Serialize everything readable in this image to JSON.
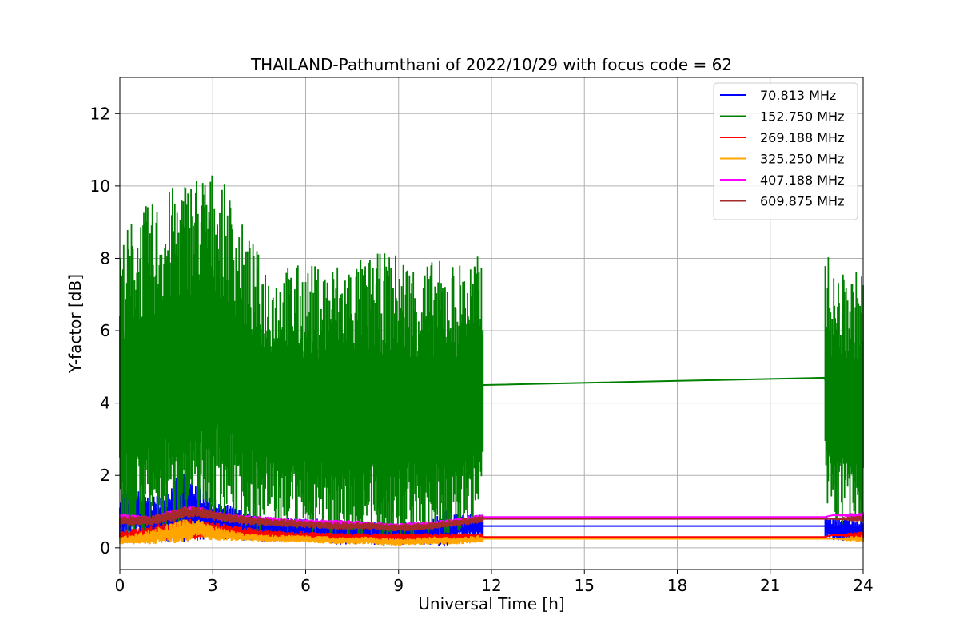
{
  "chart_data": {
    "type": "line",
    "title": "THAILAND-Pathumthani of 2022/10/29 with focus code = 62",
    "xlabel": "Universal Time [h]",
    "ylabel": "Y-factor [dB]",
    "xlim": [
      0,
      24
    ],
    "ylim": [
      -0.6,
      13.0
    ],
    "xticks": [
      0,
      3,
      6,
      9,
      12,
      15,
      18,
      21,
      24
    ],
    "yticks": [
      0,
      2,
      4,
      6,
      8,
      10,
      12
    ],
    "grid": true,
    "legend_position": "top-right",
    "data_gap": [
      11.75,
      22.75
    ],
    "series": [
      {
        "name": " 70.813 MHz",
        "color": "#0000ff",
        "points": [
          [
            0,
            0.9
          ],
          [
            0.5,
            1.0
          ],
          [
            1,
            0.8
          ],
          [
            1.5,
            0.9
          ],
          [
            2,
            1.1
          ],
          [
            2.5,
            1.0
          ],
          [
            3,
            0.8
          ],
          [
            3.5,
            0.7
          ],
          [
            4,
            0.6
          ],
          [
            4.5,
            0.5
          ],
          [
            5,
            0.5
          ],
          [
            5.5,
            0.5
          ],
          [
            6,
            0.5
          ],
          [
            6.5,
            0.5
          ],
          [
            7,
            0.4
          ],
          [
            7.5,
            0.4
          ],
          [
            8,
            0.4
          ],
          [
            8.5,
            0.4
          ],
          [
            9,
            0.4
          ],
          [
            9.5,
            0.4
          ],
          [
            10,
            0.4
          ],
          [
            10.5,
            0.5
          ],
          [
            11,
            0.6
          ],
          [
            11.75,
            0.6
          ],
          [
            22.75,
            0.6
          ],
          [
            23,
            0.5
          ],
          [
            23.5,
            0.5
          ],
          [
            24,
            0.5
          ]
        ],
        "spread": [
          [
            0,
            0.6
          ],
          [
            0.5,
            0.6
          ],
          [
            1,
            0.5
          ],
          [
            1.5,
            0.7
          ],
          [
            2,
            0.9
          ],
          [
            2.5,
            0.8
          ],
          [
            3,
            0.5
          ],
          [
            4,
            0.4
          ],
          [
            5,
            0.3
          ],
          [
            6,
            0.3
          ],
          [
            7,
            0.3
          ],
          [
            8,
            0.3
          ],
          [
            9,
            0.3
          ],
          [
            10,
            0.3
          ],
          [
            10.5,
            0.5
          ],
          [
            11,
            0.3
          ],
          [
            11.75,
            0.3
          ],
          [
            22.75,
            0.3
          ],
          [
            24,
            0.3
          ]
        ]
      },
      {
        "name": "152.750 MHz",
        "color": "#008000",
        "points": [
          [
            0,
            4.3
          ],
          [
            0.5,
            4.6
          ],
          [
            1,
            4.8
          ],
          [
            1.5,
            5.0
          ],
          [
            2,
            5.2
          ],
          [
            2.5,
            5.5
          ],
          [
            3,
            5.5
          ],
          [
            3.5,
            5.2
          ],
          [
            4,
            4.6
          ],
          [
            4.5,
            4.2
          ],
          [
            5,
            4.1
          ],
          [
            5.5,
            4.0
          ],
          [
            6,
            4.0
          ],
          [
            6.5,
            4.0
          ],
          [
            7,
            4.0
          ],
          [
            7.5,
            4.0
          ],
          [
            8,
            4.0
          ],
          [
            8.5,
            4.0
          ],
          [
            9,
            4.0
          ],
          [
            9.5,
            4.0
          ],
          [
            10,
            4.0
          ],
          [
            10.5,
            4.0
          ],
          [
            11,
            4.0
          ],
          [
            11.75,
            4.5
          ],
          [
            22.75,
            4.7
          ],
          [
            23,
            4.0
          ],
          [
            23.5,
            4.0
          ],
          [
            24,
            4.0
          ]
        ],
        "spread": [
          [
            0,
            3.8
          ],
          [
            0.5,
            4.3
          ],
          [
            1,
            4.3
          ],
          [
            1.5,
            4.4
          ],
          [
            2,
            4.6
          ],
          [
            2.5,
            4.5
          ],
          [
            3,
            4.5
          ],
          [
            3.5,
            4.3
          ],
          [
            4,
            3.9
          ],
          [
            4.5,
            3.6
          ],
          [
            5,
            3.4
          ],
          [
            5.5,
            3.5
          ],
          [
            6,
            3.5
          ],
          [
            6.5,
            3.5
          ],
          [
            7,
            3.6
          ],
          [
            7.5,
            3.6
          ],
          [
            8,
            3.7
          ],
          [
            8.5,
            3.8
          ],
          [
            9,
            3.8
          ],
          [
            9.5,
            3.6
          ],
          [
            10,
            3.6
          ],
          [
            10.5,
            3.6
          ],
          [
            11,
            3.6
          ],
          [
            11.75,
            3.3
          ],
          [
            22.75,
            3.5
          ],
          [
            23,
            3.3
          ],
          [
            23.5,
            3.3
          ],
          [
            24,
            3.4
          ]
        ]
      },
      {
        "name": "269.188 MHz",
        "color": "#ff0000",
        "points": [
          [
            0,
            0.35
          ],
          [
            1,
            0.4
          ],
          [
            2,
            0.5
          ],
          [
            3,
            0.5
          ],
          [
            4,
            0.4
          ],
          [
            5,
            0.35
          ],
          [
            6,
            0.35
          ],
          [
            7,
            0.3
          ],
          [
            8,
            0.3
          ],
          [
            9,
            0.3
          ],
          [
            10,
            0.3
          ],
          [
            11,
            0.3
          ],
          [
            11.75,
            0.3
          ],
          [
            22.75,
            0.3
          ],
          [
            23,
            0.35
          ],
          [
            24,
            0.35
          ]
        ],
        "spread": [
          [
            0,
            0.1
          ],
          [
            2,
            0.3
          ],
          [
            3,
            0.2
          ],
          [
            6,
            0.1
          ],
          [
            11.75,
            0.1
          ],
          [
            22.75,
            0.0
          ],
          [
            24,
            0.1
          ]
        ]
      },
      {
        "name": "325.250 MHz",
        "color": "#ffa500",
        "points": [
          [
            0,
            0.2
          ],
          [
            1,
            0.3
          ],
          [
            2,
            0.45
          ],
          [
            2.5,
            0.55
          ],
          [
            3,
            0.4
          ],
          [
            4,
            0.3
          ],
          [
            5,
            0.25
          ],
          [
            6,
            0.25
          ],
          [
            7,
            0.2
          ],
          [
            8,
            0.2
          ],
          [
            9,
            0.15
          ],
          [
            10,
            0.2
          ],
          [
            11,
            0.2
          ],
          [
            11.75,
            0.25
          ],
          [
            22.75,
            0.25
          ],
          [
            23,
            0.25
          ],
          [
            24,
            0.25
          ]
        ],
        "spread": [
          [
            0,
            0.1
          ],
          [
            2,
            0.3
          ],
          [
            2.5,
            0.25
          ],
          [
            4,
            0.1
          ],
          [
            11.75,
            0.1
          ],
          [
            22.75,
            0.0
          ],
          [
            24,
            0.1
          ]
        ]
      },
      {
        "name": "407.188 MHz",
        "color": "#ff00ff",
        "points": [
          [
            0,
            0.85
          ],
          [
            1,
            0.75
          ],
          [
            2,
            1.0
          ],
          [
            2.5,
            1.05
          ],
          [
            3,
            0.9
          ],
          [
            4,
            0.8
          ],
          [
            5,
            0.75
          ],
          [
            6,
            0.7
          ],
          [
            7,
            0.7
          ],
          [
            8,
            0.65
          ],
          [
            9,
            0.6
          ],
          [
            10,
            0.65
          ],
          [
            11,
            0.75
          ],
          [
            11.75,
            0.85
          ],
          [
            22.75,
            0.85
          ],
          [
            23,
            0.9
          ],
          [
            24,
            0.9
          ]
        ],
        "spread": [
          [
            0,
            0.1
          ],
          [
            2,
            0.12
          ],
          [
            6,
            0.08
          ],
          [
            11.75,
            0.08
          ],
          [
            22.75,
            0.0
          ],
          [
            24,
            0.08
          ]
        ]
      },
      {
        "name": "609.875 MHz",
        "color": "#a52a2a",
        "points": [
          [
            0,
            0.75
          ],
          [
            1,
            0.75
          ],
          [
            2,
            0.95
          ],
          [
            2.5,
            1.0
          ],
          [
            3,
            0.9
          ],
          [
            4,
            0.75
          ],
          [
            5,
            0.7
          ],
          [
            6,
            0.65
          ],
          [
            7,
            0.6
          ],
          [
            8,
            0.6
          ],
          [
            9,
            0.55
          ],
          [
            10,
            0.6
          ],
          [
            11,
            0.7
          ],
          [
            11.75,
            0.8
          ],
          [
            22.75,
            0.8
          ],
          [
            23,
            0.8
          ],
          [
            24,
            0.8
          ]
        ],
        "spread": [
          [
            0,
            0.12
          ],
          [
            2,
            0.15
          ],
          [
            6,
            0.1
          ],
          [
            11.75,
            0.1
          ],
          [
            22.75,
            0.0
          ],
          [
            24,
            0.1
          ]
        ]
      }
    ]
  }
}
